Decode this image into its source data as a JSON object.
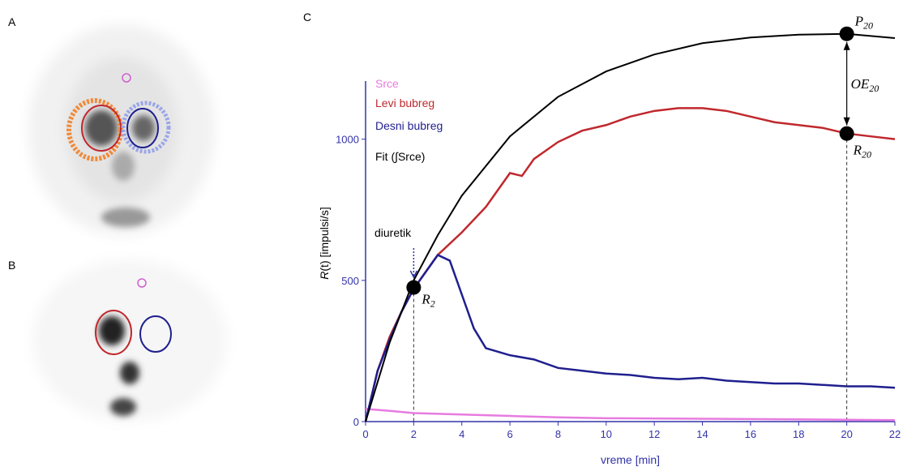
{
  "panels": {
    "a": "A",
    "b": "B",
    "c": "C"
  },
  "chart_data": {
    "type": "line",
    "y_label_var": "R",
    "y_label": "(t) [impulsi/s]",
    "x_label": "vreme [min]",
    "xlim": [
      0,
      22
    ],
    "ylim": [
      0,
      1200
    ],
    "xticks": [
      0,
      2,
      4,
      6,
      8,
      10,
      12,
      14,
      16,
      18,
      20,
      22
    ],
    "yticks": [
      0,
      500,
      1000
    ],
    "legend": "upper left",
    "series": [
      {
        "name": "Srce",
        "color": "#e77be0",
        "x": [
          0,
          1,
          2,
          4,
          6,
          8,
          10,
          14,
          18,
          22
        ],
        "values": [
          45,
          38,
          30,
          25,
          20,
          15,
          12,
          10,
          8,
          5
        ]
      },
      {
        "name": "Levi bubreg",
        "color": "#c0282d",
        "x": [
          0,
          0.5,
          1,
          1.5,
          2,
          2.5,
          3,
          4,
          5,
          6,
          6.5,
          7,
          8,
          9,
          10,
          11,
          12,
          13,
          14,
          15,
          16,
          17,
          18,
          19,
          20,
          21,
          22
        ],
        "values": [
          0,
          180,
          300,
          390,
          470,
          530,
          590,
          670,
          760,
          880,
          870,
          930,
          990,
          1030,
          1050,
          1080,
          1100,
          1110,
          1110,
          1100,
          1080,
          1060,
          1050,
          1040,
          1020,
          1010,
          1000
        ]
      },
      {
        "name": "Desni bubreg",
        "color": "#1f1f8f",
        "x": [
          0,
          0.5,
          1,
          1.5,
          2,
          2.5,
          3,
          3.5,
          4,
          4.5,
          5,
          6,
          7,
          8,
          9,
          10,
          11,
          12,
          13,
          14,
          15,
          16,
          17,
          18,
          19,
          20,
          21,
          22
        ],
        "values": [
          0,
          180,
          290,
          390,
          470,
          530,
          590,
          570,
          450,
          330,
          260,
          235,
          220,
          190,
          180,
          170,
          165,
          155,
          150,
          155,
          145,
          140,
          135,
          135,
          130,
          125,
          125,
          120
        ]
      },
      {
        "name": "Fit (∫Srce)",
        "color": "#000000",
        "x": [
          0,
          1,
          2,
          3,
          4,
          6,
          8,
          10,
          12,
          14,
          16,
          18,
          20,
          22
        ],
        "values": [
          0,
          280,
          500,
          660,
          800,
          1010,
          1150,
          1240,
          1300,
          1340,
          1360,
          1370,
          1373,
          1358
        ]
      }
    ],
    "markers": [
      {
        "label": "R",
        "sub": "2",
        "x": 2,
        "y": 475
      },
      {
        "label": "P",
        "sub": "20",
        "x": 20,
        "y": 1373
      },
      {
        "label": "R",
        "sub": "20",
        "x": 20,
        "y": 1020
      }
    ],
    "diuretic": {
      "label": "diuretik",
      "x": 2
    },
    "oe": {
      "label": "OE",
      "sub": "20"
    }
  }
}
